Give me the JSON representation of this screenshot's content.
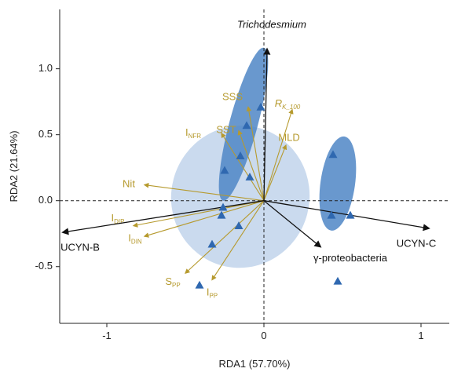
{
  "chart_data": {
    "type": "scatter",
    "xlabel": "RDA1 (57.70%)",
    "ylabel": "RDA2 (21.64%)",
    "xlim": [
      -1.3,
      1.18
    ],
    "ylim": [
      -0.93,
      1.45
    ],
    "x_ticks": [
      -1,
      0,
      1
    ],
    "x_tick_labels": [
      "-1",
      "0",
      "1"
    ],
    "y_ticks": [
      -0.5,
      0,
      0.5,
      1
    ],
    "y_tick_labels": [
      "-0.5",
      "0.0",
      "0.5",
      "1.0"
    ],
    "grid": false,
    "colors": {
      "species_arrow": "#111111",
      "env_arrow": "#b69a2e",
      "points": "#2f68b0",
      "ellipse_dark": "#4f86c6",
      "ellipse_light": "#b8cde8"
    },
    "ellipses": [
      {
        "cx": -0.15,
        "cy": 0.03,
        "rx": 0.54,
        "ry": 0.44,
        "angle": -75,
        "color": "light"
      },
      {
        "cx": -0.13,
        "cy": 0.58,
        "rx": 0.6,
        "ry": 0.09,
        "angle": -75,
        "color": "dark"
      },
      {
        "cx": 0.47,
        "cy": 0.13,
        "rx": 0.36,
        "ry": 0.11,
        "angle": -82,
        "color": "dark"
      }
    ],
    "species_vectors": [
      {
        "name": "Trichodesmium",
        "x": 0.02,
        "y": 1.15,
        "label": "Trichodesmium",
        "label_x": 0.05,
        "label_y": 1.33
      },
      {
        "name": "UCYN-B",
        "x": -1.28,
        "y": -0.24,
        "label": "UCYN-B",
        "label_x": -1.17,
        "label_y": -0.36
      },
      {
        "name": "UCYN-C",
        "x": 1.05,
        "y": -0.21,
        "label": "UCYN-C",
        "label_x": 0.97,
        "label_y": -0.33
      },
      {
        "name": "γ-proteobacteria",
        "x": 0.36,
        "y": -0.35,
        "label": "γ-proteobacteria",
        "label_x": 0.55,
        "label_y": -0.44
      }
    ],
    "env_vectors": [
      {
        "main": "SSS",
        "sub": "",
        "x": -0.1,
        "y": 0.71,
        "label_x": -0.2,
        "label_y": 0.78
      },
      {
        "main": "SST",
        "sub": "",
        "x": -0.16,
        "y": 0.53,
        "label_x": -0.24,
        "label_y": 0.53
      },
      {
        "main": "R",
        "sub": "K_100",
        "x": 0.18,
        "y": 0.69,
        "label_x": 0.15,
        "label_y": 0.73,
        "italic": true
      },
      {
        "main": "MLD",
        "sub": "",
        "x": 0.14,
        "y": 0.42,
        "label_x": 0.16,
        "label_y": 0.47
      },
      {
        "main": "I",
        "sub": "NFR",
        "x": -0.27,
        "y": 0.51,
        "label_x": -0.45,
        "label_y": 0.51
      },
      {
        "main": "Nit",
        "sub": "",
        "x": -0.76,
        "y": 0.12,
        "label_x": -0.86,
        "label_y": 0.12
      },
      {
        "main": "I",
        "sub": "DIP",
        "x": -0.83,
        "y": -0.19,
        "label_x": -0.93,
        "label_y": -0.14
      },
      {
        "main": "I",
        "sub": "DIN",
        "x": -0.76,
        "y": -0.27,
        "label_x": -0.82,
        "label_y": -0.29
      },
      {
        "main": "S",
        "sub": "PP",
        "x": -0.5,
        "y": -0.55,
        "label_x": -0.58,
        "label_y": -0.62
      },
      {
        "main": "I",
        "sub": "PP",
        "x": -0.33,
        "y": -0.6,
        "label_x": -0.33,
        "label_y": -0.7
      }
    ],
    "points": [
      {
        "x": -0.02,
        "y": 0.71
      },
      {
        "x": -0.11,
        "y": 0.57
      },
      {
        "x": -0.15,
        "y": 0.34
      },
      {
        "x": -0.25,
        "y": 0.23
      },
      {
        "x": -0.09,
        "y": 0.18
      },
      {
        "x": -0.26,
        "y": -0.05
      },
      {
        "x": -0.27,
        "y": -0.11
      },
      {
        "x": -0.16,
        "y": -0.19
      },
      {
        "x": -0.33,
        "y": -0.33
      },
      {
        "x": -0.41,
        "y": -0.64
      },
      {
        "x": 0.44,
        "y": 0.35
      },
      {
        "x": 0.43,
        "y": -0.11
      },
      {
        "x": 0.55,
        "y": -0.11
      },
      {
        "x": 0.47,
        "y": -0.61
      }
    ]
  }
}
